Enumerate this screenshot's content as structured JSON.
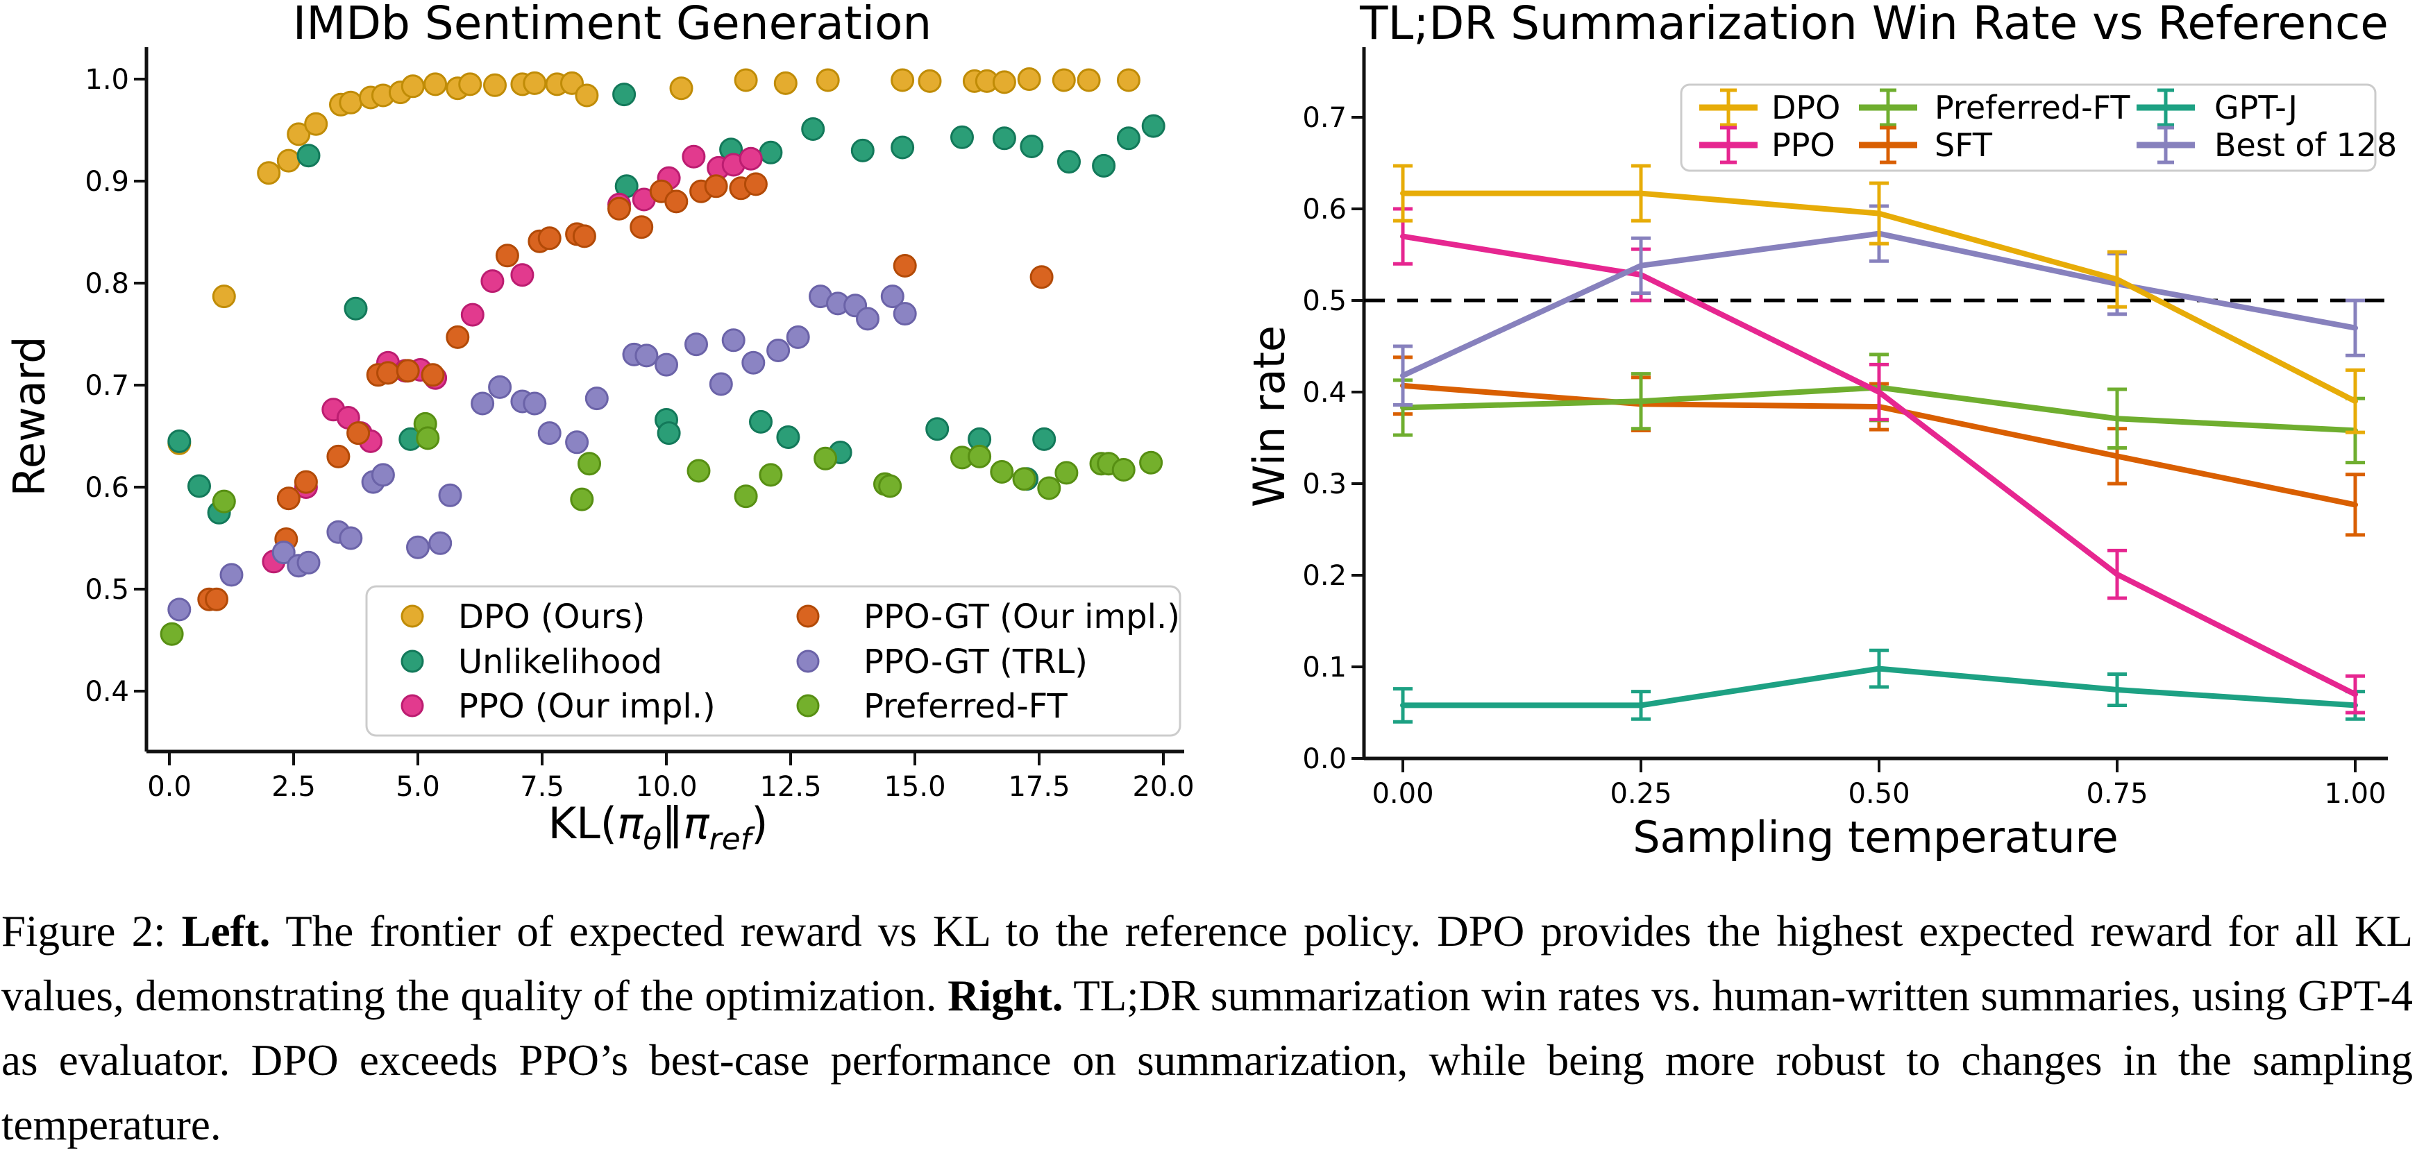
{
  "figure": {
    "caption": {
      "segments": [
        {
          "text": "Figure 2: ",
          "bold": false
        },
        {
          "text": "Left.",
          "bold": true
        },
        {
          "text": " The frontier of expected reward vs KL to the reference policy. DPO provides the highest expected reward for all KL values, demonstrating the quality of the optimization. ",
          "bold": false
        },
        {
          "text": "Right.",
          "bold": true
        },
        {
          "text": " TL;DR summarization win rates vs. human-written summaries, using GPT-4 as evaluator. DPO exceeds PPO’s best-case performance on summarization, while being more robust to changes in the sampling temperature.",
          "bold": false
        }
      ]
    }
  },
  "chart_data": [
    {
      "type": "scatter",
      "title": "IMDb Sentiment Generation",
      "ylabel": "Reward",
      "xlabel_plain": "KL(πθ‖πref)",
      "xlabel_rich": [
        {
          "t": "KL("
        },
        {
          "t": "π",
          "italic": true
        },
        {
          "t": "θ",
          "italic": true,
          "sub": true
        },
        {
          "t": "‖"
        },
        {
          "t": "π",
          "italic": true
        },
        {
          "t": "ref",
          "italic": true,
          "sub": true
        },
        {
          "t": ")"
        }
      ],
      "xlim": [
        -0.47,
        20.45
      ],
      "ylim": [
        0.341,
        1.03
      ],
      "xticks": [
        0,
        2.5,
        5,
        7.5,
        10,
        12.5,
        15,
        17.5,
        20
      ],
      "xtick_labels": [
        "0.0",
        "2.5",
        "5.0",
        "7.5",
        "10.0",
        "12.5",
        "15.0",
        "17.5",
        "20.0"
      ],
      "yticks": [
        0.4,
        0.5,
        0.6,
        0.7,
        0.8,
        0.9,
        1.0
      ],
      "ytick_labels": [
        "0.4",
        "0.5",
        "0.6",
        "0.7",
        "0.8",
        "0.9",
        "1.0"
      ],
      "grid": false,
      "legend_position": "lower right",
      "legend_columns": [
        [
          0,
          1,
          2
        ],
        [
          3,
          4,
          5
        ]
      ],
      "series": [
        {
          "name": "DPO (Ours)",
          "color": "#e4ac2f",
          "edge": "#c08c07",
          "points": [
            [
              0.2,
              0.643
            ],
            [
              1.1,
              0.787
            ],
            [
              2.0,
              0.908
            ],
            [
              2.4,
              0.92
            ],
            [
              2.6,
              0.946
            ],
            [
              2.95,
              0.956
            ],
            [
              3.45,
              0.975
            ],
            [
              3.65,
              0.977
            ],
            [
              4.05,
              0.982
            ],
            [
              4.3,
              0.984
            ],
            [
              4.65,
              0.987
            ],
            [
              4.9,
              0.993
            ],
            [
              5.35,
              0.995
            ],
            [
              5.8,
              0.991
            ],
            [
              6.05,
              0.995
            ],
            [
              6.55,
              0.994
            ],
            [
              7.1,
              0.995
            ],
            [
              7.35,
              0.996
            ],
            [
              7.8,
              0.995
            ],
            [
              8.1,
              0.996
            ],
            [
              8.4,
              0.984
            ],
            [
              10.3,
              0.991
            ],
            [
              11.6,
              0.999
            ],
            [
              12.4,
              0.996
            ],
            [
              13.25,
              0.999
            ],
            [
              14.75,
              0.999
            ],
            [
              15.3,
              0.998
            ],
            [
              16.2,
              0.998
            ],
            [
              16.45,
              0.998
            ],
            [
              16.8,
              0.997
            ],
            [
              17.3,
              1.0
            ],
            [
              18.0,
              0.999
            ],
            [
              18.5,
              0.999
            ],
            [
              19.3,
              0.999
            ]
          ]
        },
        {
          "name": "Unlikelihood",
          "color": "#2b9e77",
          "edge": "#13795a",
          "points": [
            [
              0.2,
              0.645
            ],
            [
              0.6,
              0.601
            ],
            [
              1.0,
              0.575
            ],
            [
              2.8,
              0.925
            ],
            [
              3.75,
              0.775
            ],
            [
              4.85,
              0.647
            ],
            [
              9.15,
              0.985
            ],
            [
              9.2,
              0.895
            ],
            [
              10.0,
              0.666
            ],
            [
              10.05,
              0.653
            ],
            [
              11.3,
              0.931
            ],
            [
              11.9,
              0.664
            ],
            [
              12.1,
              0.928
            ],
            [
              12.45,
              0.649
            ],
            [
              12.95,
              0.951
            ],
            [
              13.5,
              0.634
            ],
            [
              13.95,
              0.93
            ],
            [
              14.75,
              0.933
            ],
            [
              15.45,
              0.657
            ],
            [
              15.95,
              0.943
            ],
            [
              16.3,
              0.647
            ],
            [
              16.8,
              0.942
            ],
            [
              17.25,
              0.608
            ],
            [
              17.35,
              0.934
            ],
            [
              17.6,
              0.647
            ],
            [
              18.1,
              0.919
            ],
            [
              18.8,
              0.915
            ],
            [
              19.3,
              0.942
            ],
            [
              19.8,
              0.954
            ]
          ]
        },
        {
          "name": "PPO (Our impl.)",
          "color": "#e23a8e",
          "edge": "#bc1d71",
          "points": [
            [
              2.1,
              0.527
            ],
            [
              2.75,
              0.6
            ],
            [
              3.3,
              0.676
            ],
            [
              3.6,
              0.668
            ],
            [
              3.85,
              0.653
            ],
            [
              4.05,
              0.645
            ],
            [
              4.4,
              0.722
            ],
            [
              4.75,
              0.714
            ],
            [
              5.05,
              0.715
            ],
            [
              5.35,
              0.707
            ],
            [
              6.1,
              0.769
            ],
            [
              6.5,
              0.802
            ],
            [
              7.1,
              0.808
            ],
            [
              9.05,
              0.877
            ],
            [
              9.55,
              0.882
            ],
            [
              10.05,
              0.903
            ],
            [
              10.55,
              0.924
            ],
            [
              11.05,
              0.913
            ],
            [
              11.35,
              0.916
            ],
            [
              11.7,
              0.922
            ]
          ]
        },
        {
          "name": "PPO-GT (Our impl.)",
          "color": "#d96420",
          "edge": "#b24a07",
          "points": [
            [
              0.8,
              0.49
            ],
            [
              0.95,
              0.49
            ],
            [
              2.35,
              0.549
            ],
            [
              2.4,
              0.589
            ],
            [
              2.75,
              0.605
            ],
            [
              3.4,
              0.63
            ],
            [
              3.8,
              0.653
            ],
            [
              4.2,
              0.71
            ],
            [
              4.4,
              0.712
            ],
            [
              4.8,
              0.714
            ],
            [
              5.3,
              0.71
            ],
            [
              5.8,
              0.747
            ],
            [
              6.8,
              0.827
            ],
            [
              7.45,
              0.841
            ],
            [
              7.65,
              0.844
            ],
            [
              8.2,
              0.848
            ],
            [
              8.35,
              0.846
            ],
            [
              9.05,
              0.873
            ],
            [
              9.5,
              0.855
            ],
            [
              9.9,
              0.89
            ],
            [
              10.2,
              0.88
            ],
            [
              10.7,
              0.89
            ],
            [
              11.0,
              0.895
            ],
            [
              11.5,
              0.893
            ],
            [
              11.8,
              0.897
            ],
            [
              14.8,
              0.817
            ],
            [
              17.55,
              0.806
            ]
          ]
        },
        {
          "name": "PPO-GT (TRL)",
          "color": "#8b84c3",
          "edge": "#6b63a8",
          "points": [
            [
              0.2,
              0.48
            ],
            [
              1.25,
              0.514
            ],
            [
              2.3,
              0.536
            ],
            [
              2.6,
              0.523
            ],
            [
              2.8,
              0.526
            ],
            [
              3.4,
              0.556
            ],
            [
              3.65,
              0.55
            ],
            [
              4.1,
              0.605
            ],
            [
              4.3,
              0.612
            ],
            [
              5.0,
              0.541
            ],
            [
              5.45,
              0.545
            ],
            [
              5.65,
              0.592
            ],
            [
              6.3,
              0.682
            ],
            [
              6.65,
              0.698
            ],
            [
              7.1,
              0.684
            ],
            [
              7.35,
              0.682
            ],
            [
              7.65,
              0.653
            ],
            [
              8.2,
              0.644
            ],
            [
              8.6,
              0.687
            ],
            [
              9.35,
              0.73
            ],
            [
              9.6,
              0.729
            ],
            [
              10.0,
              0.72
            ],
            [
              10.6,
              0.74
            ],
            [
              11.1,
              0.701
            ],
            [
              11.35,
              0.744
            ],
            [
              11.75,
              0.722
            ],
            [
              12.25,
              0.734
            ],
            [
              12.65,
              0.747
            ],
            [
              13.1,
              0.787
            ],
            [
              13.45,
              0.78
            ],
            [
              13.8,
              0.778
            ],
            [
              14.05,
              0.765
            ],
            [
              14.55,
              0.787
            ],
            [
              14.8,
              0.77
            ]
          ]
        },
        {
          "name": "Preferred-FT",
          "color": "#74b02c",
          "edge": "#578f13",
          "points": [
            [
              0.05,
              0.456
            ],
            [
              1.1,
              0.586
            ],
            [
              5.15,
              0.662
            ],
            [
              5.2,
              0.648
            ],
            [
              8.3,
              0.588
            ],
            [
              8.45,
              0.623
            ],
            [
              10.65,
              0.616
            ],
            [
              11.6,
              0.591
            ],
            [
              12.1,
              0.612
            ],
            [
              13.2,
              0.628
            ],
            [
              14.4,
              0.603
            ],
            [
              14.5,
              0.601
            ],
            [
              15.95,
              0.629
            ],
            [
              16.3,
              0.63
            ],
            [
              16.75,
              0.615
            ],
            [
              17.2,
              0.608
            ],
            [
              17.7,
              0.599
            ],
            [
              18.05,
              0.614
            ],
            [
              18.75,
              0.623
            ],
            [
              18.9,
              0.623
            ],
            [
              19.2,
              0.617
            ],
            [
              19.75,
              0.624
            ]
          ]
        }
      ]
    },
    {
      "type": "line",
      "title": "TL;DR Summarization Win Rate vs Reference",
      "xlabel": "Sampling temperature",
      "ylabel": "Win rate",
      "x": [
        0.0,
        0.25,
        0.5,
        0.75,
        1.0
      ],
      "xtick_labels": [
        "0.00",
        "0.25",
        "0.50",
        "0.75",
        "1.00"
      ],
      "yticks": [
        0.0,
        0.1,
        0.2,
        0.3,
        0.4,
        0.5,
        0.6,
        0.7
      ],
      "ytick_labels": [
        "0.0",
        "0.1",
        "0.2",
        "0.3",
        "0.4",
        "0.5",
        "0.6",
        "0.7"
      ],
      "ylim": [
        0.0,
        0.75
      ],
      "grid": false,
      "reference_line": 0.5,
      "legend_position": "upper right",
      "legend_columns": [
        [
          0,
          1
        ],
        [
          2,
          3
        ],
        [
          4,
          5
        ]
      ],
      "series": [
        {
          "name": "DPO",
          "color": "#e7ac08",
          "values": [
            0.617,
            0.617,
            0.595,
            0.523,
            0.39
          ],
          "errors": [
            0.03,
            0.03,
            0.033,
            0.03,
            0.034
          ]
        },
        {
          "name": "PPO",
          "color": "#e62690",
          "values": [
            0.57,
            0.528,
            0.4,
            0.201,
            0.07
          ],
          "errors": [
            0.03,
            0.028,
            0.03,
            0.026,
            0.02
          ]
        },
        {
          "name": "Preferred-FT",
          "color": "#6fae2f",
          "values": [
            0.383,
            0.39,
            0.405,
            0.371,
            0.358
          ],
          "errors": [
            0.03,
            0.03,
            0.036,
            0.032,
            0.035
          ]
        },
        {
          "name": "SFT",
          "color": "#d95f02",
          "values": [
            0.407,
            0.387,
            0.384,
            0.33,
            0.277
          ],
          "errors": [
            0.031,
            0.029,
            0.025,
            0.03,
            0.033
          ]
        },
        {
          "name": "GPT-J",
          "color": "#1da183",
          "values": [
            0.058,
            0.058,
            0.098,
            0.075,
            0.058
          ],
          "errors": [
            0.018,
            0.015,
            0.02,
            0.017,
            0.015
          ]
        },
        {
          "name": "Best of 128",
          "color": "#8781bd",
          "values": [
            0.418,
            0.538,
            0.573,
            0.518,
            0.47
          ],
          "errors": [
            0.032,
            0.03,
            0.03,
            0.033,
            0.03
          ]
        }
      ]
    }
  ]
}
